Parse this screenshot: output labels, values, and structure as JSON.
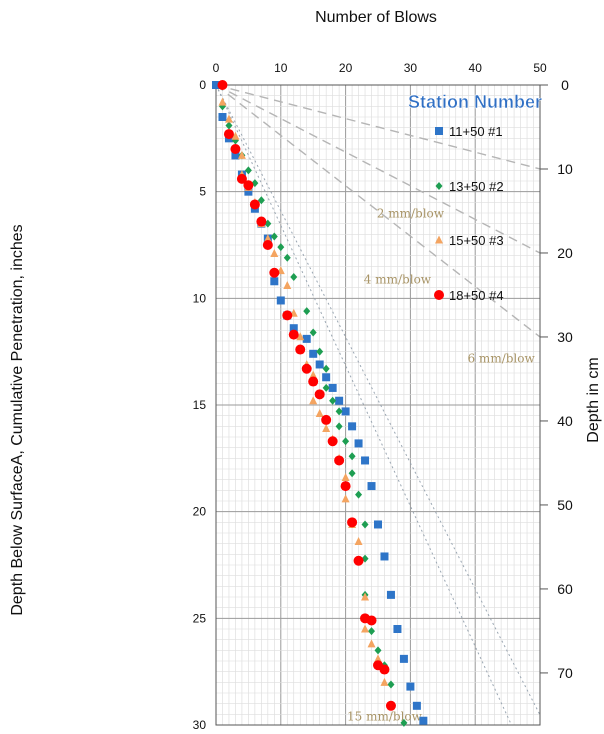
{
  "chart_data": {
    "type": "scatter",
    "xlabel": "Number of Blows",
    "ylabel": "Depth Below SurfaceA, Cumulative Penetration, inches",
    "y2label": "Depth in cm",
    "xlim": [
      0,
      50
    ],
    "ylim": [
      0,
      30
    ],
    "y2lim": [
      0,
      76.2
    ],
    "x_ticks": [
      "0",
      "10",
      "20",
      "30",
      "40",
      "50"
    ],
    "y_ticks": [
      "0",
      "5",
      "10",
      "15",
      "20",
      "25",
      "30"
    ],
    "y2_ticks": [
      "0",
      "10",
      "20",
      "30",
      "40",
      "50",
      "60",
      "70"
    ],
    "legend_title": "Station Number",
    "legend_position": "top-right",
    "grid": true,
    "series": [
      {
        "name": "11+50 #1",
        "marker": "square",
        "color": "#2e75c8",
        "points": [
          [
            0,
            0
          ],
          [
            1,
            1.5
          ],
          [
            2,
            2.5
          ],
          [
            3,
            3.3
          ],
          [
            4,
            4.2
          ],
          [
            5,
            5
          ],
          [
            6,
            5.8
          ],
          [
            7,
            6.5
          ],
          [
            8,
            7.2
          ],
          [
            9,
            9.2
          ],
          [
            10,
            10.1
          ],
          [
            11,
            10.8
          ],
          [
            12,
            11.4
          ],
          [
            14,
            11.9
          ],
          [
            15,
            12.6
          ],
          [
            16,
            13.1
          ],
          [
            17,
            13.7
          ],
          [
            18,
            14.2
          ],
          [
            19,
            14.8
          ],
          [
            20,
            15.3
          ],
          [
            21,
            16
          ],
          [
            22,
            16.8
          ],
          [
            23,
            17.6
          ],
          [
            24,
            18.8
          ],
          [
            25,
            20.6
          ],
          [
            26,
            22.1
          ],
          [
            27,
            23.9
          ],
          [
            28,
            25.5
          ],
          [
            29,
            26.9
          ],
          [
            30,
            28.2
          ],
          [
            31,
            29.1
          ],
          [
            32,
            29.8
          ]
        ]
      },
      {
        "name": "13+50 #2",
        "marker": "diamond",
        "color": "#1e9e52",
        "points": [
          [
            1,
            1
          ],
          [
            2,
            1.9
          ],
          [
            3,
            2.6
          ],
          [
            4,
            3.3
          ],
          [
            5,
            4
          ],
          [
            6,
            4.6
          ],
          [
            7,
            5.4
          ],
          [
            8,
            6.5
          ],
          [
            9,
            7.1
          ],
          [
            10,
            7.6
          ],
          [
            11,
            8.1
          ],
          [
            12,
            9
          ],
          [
            14,
            10.6
          ],
          [
            15,
            11.6
          ],
          [
            16,
            12.5
          ],
          [
            17,
            13.3
          ],
          [
            17,
            14.2
          ],
          [
            18,
            14.8
          ],
          [
            19,
            15.3
          ],
          [
            19,
            16
          ],
          [
            20,
            16.7
          ],
          [
            21,
            17.4
          ],
          [
            21,
            18.2
          ],
          [
            22,
            19.2
          ],
          [
            23,
            20.6
          ],
          [
            23,
            22.2
          ],
          [
            23,
            23.9
          ],
          [
            24,
            25.6
          ],
          [
            25,
            26.5
          ],
          [
            26,
            27.2
          ],
          [
            27,
            28.1
          ],
          [
            29,
            29.9
          ]
        ]
      },
      {
        "name": "15+50 #3",
        "marker": "triangle",
        "color": "#f4a460",
        "points": [
          [
            1,
            0.8
          ],
          [
            2,
            1.6
          ],
          [
            3,
            2.4
          ],
          [
            4,
            3.3
          ],
          [
            4,
            4.2
          ],
          [
            5,
            4.8
          ],
          [
            6,
            5.5
          ],
          [
            7,
            6.5
          ],
          [
            8,
            7.2
          ],
          [
            9,
            7.9
          ],
          [
            10,
            8.7
          ],
          [
            11,
            9.4
          ],
          [
            12,
            10.7
          ],
          [
            13,
            11.8
          ],
          [
            13,
            12.4
          ],
          [
            14,
            13.1
          ],
          [
            15,
            13.6
          ],
          [
            15,
            14.8
          ],
          [
            16,
            15.4
          ],
          [
            17,
            16.1
          ],
          [
            18,
            16.6
          ],
          [
            19,
            17.5
          ],
          [
            20,
            18.4
          ],
          [
            20,
            19.4
          ],
          [
            21,
            20.6
          ],
          [
            22,
            21.4
          ],
          [
            23,
            24
          ],
          [
            23,
            25.5
          ],
          [
            24,
            26.2
          ],
          [
            25,
            26.9
          ],
          [
            26,
            28
          ]
        ]
      },
      {
        "name": "18+50 #4",
        "marker": "circle",
        "color": "#ff0000",
        "points": [
          [
            1,
            0
          ],
          [
            2,
            2.3
          ],
          [
            3,
            3
          ],
          [
            4,
            4.4
          ],
          [
            5,
            4.7
          ],
          [
            6,
            5.6
          ],
          [
            7,
            6.4
          ],
          [
            8,
            7.5
          ],
          [
            9,
            8.8
          ],
          [
            11,
            10.8
          ],
          [
            12,
            11.7
          ],
          [
            13,
            12.4
          ],
          [
            14,
            13.3
          ],
          [
            15,
            13.9
          ],
          [
            16,
            14.5
          ],
          [
            17,
            15.7
          ],
          [
            18,
            16.7
          ],
          [
            19,
            17.6
          ],
          [
            20,
            18.8
          ],
          [
            21,
            20.5
          ],
          [
            22,
            22.3
          ],
          [
            23,
            25
          ],
          [
            24,
            25.1
          ],
          [
            25,
            27.2
          ],
          [
            26,
            27.4
          ],
          [
            27,
            29.1
          ]
        ]
      }
    ],
    "guide_lines": [
      {
        "label": "2 mm/blow",
        "rate": 2
      },
      {
        "label": "4 mm/blow",
        "rate": 4
      },
      {
        "label": "6 mm/blow",
        "rate": 6
      },
      {
        "label": "15 mm/blow",
        "rate": 15
      }
    ]
  }
}
